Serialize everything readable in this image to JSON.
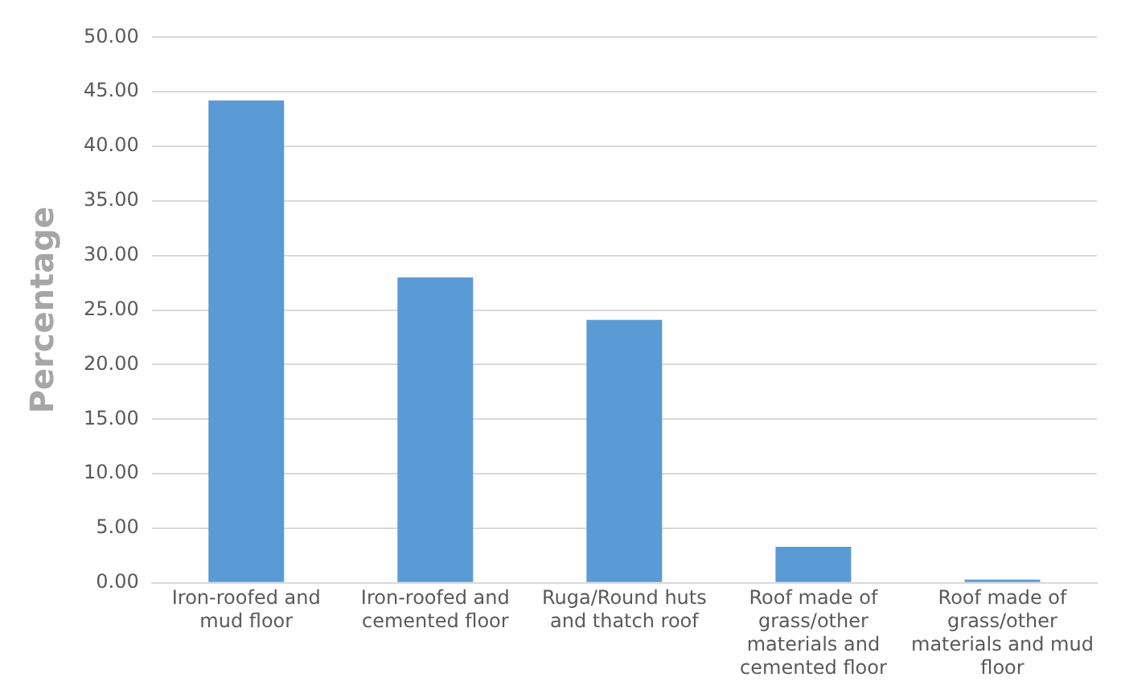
{
  "chart_data": {
    "type": "bar",
    "ylabel": "Percentage",
    "categories": [
      "Iron-roofed and mud floor",
      "Iron-roofed and cemented floor",
      "Ruga/Round huts and thatch roof",
      "Roof made of grass/other materials and cemented floor",
      "Roof made of grass/other materials and mud floor"
    ],
    "values": [
      44.2,
      28.0,
      24.1,
      3.3,
      0.3
    ],
    "color": "#5b9bd5",
    "ylim": [
      0,
      50
    ],
    "yticks": [
      {
        "value": 0,
        "label": "0.00"
      },
      {
        "value": 5,
        "label": "5.00"
      },
      {
        "value": 10,
        "label": "10.00"
      },
      {
        "value": 15,
        "label": "15.00"
      },
      {
        "value": 20,
        "label": "20.00"
      },
      {
        "value": 25,
        "label": "25.00"
      },
      {
        "value": 30,
        "label": "30.00"
      },
      {
        "value": 35,
        "label": "35.00"
      },
      {
        "value": 40,
        "label": "40.00"
      },
      {
        "value": 45,
        "label": "45.00"
      },
      {
        "value": 50,
        "label": "50.00"
      }
    ],
    "grid": "y",
    "legend": false
  }
}
